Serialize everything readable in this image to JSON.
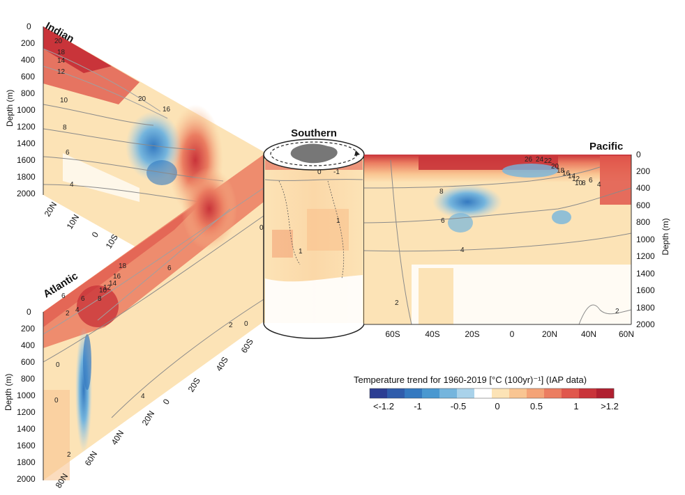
{
  "basins": {
    "indian": "Indian",
    "atlantic": "Atlantic",
    "southern": "Southern",
    "pacific": "Pacific"
  },
  "depth_label": "Depth (m)",
  "depth_ticks": [
    "0",
    "200",
    "400",
    "600",
    "800",
    "1000",
    "1200",
    "1400",
    "1600",
    "1800",
    "2000"
  ],
  "indian_lat_ticks": [
    "20N",
    "10N",
    "0",
    "10S"
  ],
  "atlantic_lat_ticks": [
    "80N",
    "60N",
    "40N",
    "20N",
    "0",
    "20S",
    "40S",
    "60S"
  ],
  "pacific_lat_ticks": [
    "60S",
    "40S",
    "20S",
    "0",
    "20N",
    "40N",
    "60N"
  ],
  "contour_labels": {
    "indian": [
      "20",
      "18",
      "14",
      "12",
      "10",
      "8",
      "6",
      "4",
      "20",
      "16"
    ],
    "atlantic": [
      "6",
      "2",
      "4",
      "6",
      "8",
      "10",
      "12",
      "14",
      "16",
      "18",
      "6",
      "2",
      "0",
      "0",
      "0",
      "4",
      "2"
    ],
    "pacific": [
      "8",
      "6",
      "4",
      "2",
      "2",
      "26",
      "24",
      "22",
      "20",
      "18",
      "16",
      "14",
      "12",
      "10",
      "8",
      "6",
      "4"
    ],
    "southern": [
      "0",
      "-1",
      "1",
      "0"
    ]
  },
  "colorbar": {
    "title": "Temperature trend for 1960-2019 [°C (100yr)⁻¹] (IAP data)",
    "tick_labels": [
      "<-1.2",
      "-1",
      "-0.5",
      "0",
      "0.5",
      "1",
      ">1.2"
    ],
    "colors": [
      "#2c3e93",
      "#2f5cab",
      "#3479c0",
      "#4a98d0",
      "#75b5dd",
      "#a9d2ea",
      "#ffffff",
      "#fce3b6",
      "#f9c592",
      "#f4a377",
      "#eb7d61",
      "#e0574c",
      "#c9343a",
      "#b02030"
    ]
  }
}
